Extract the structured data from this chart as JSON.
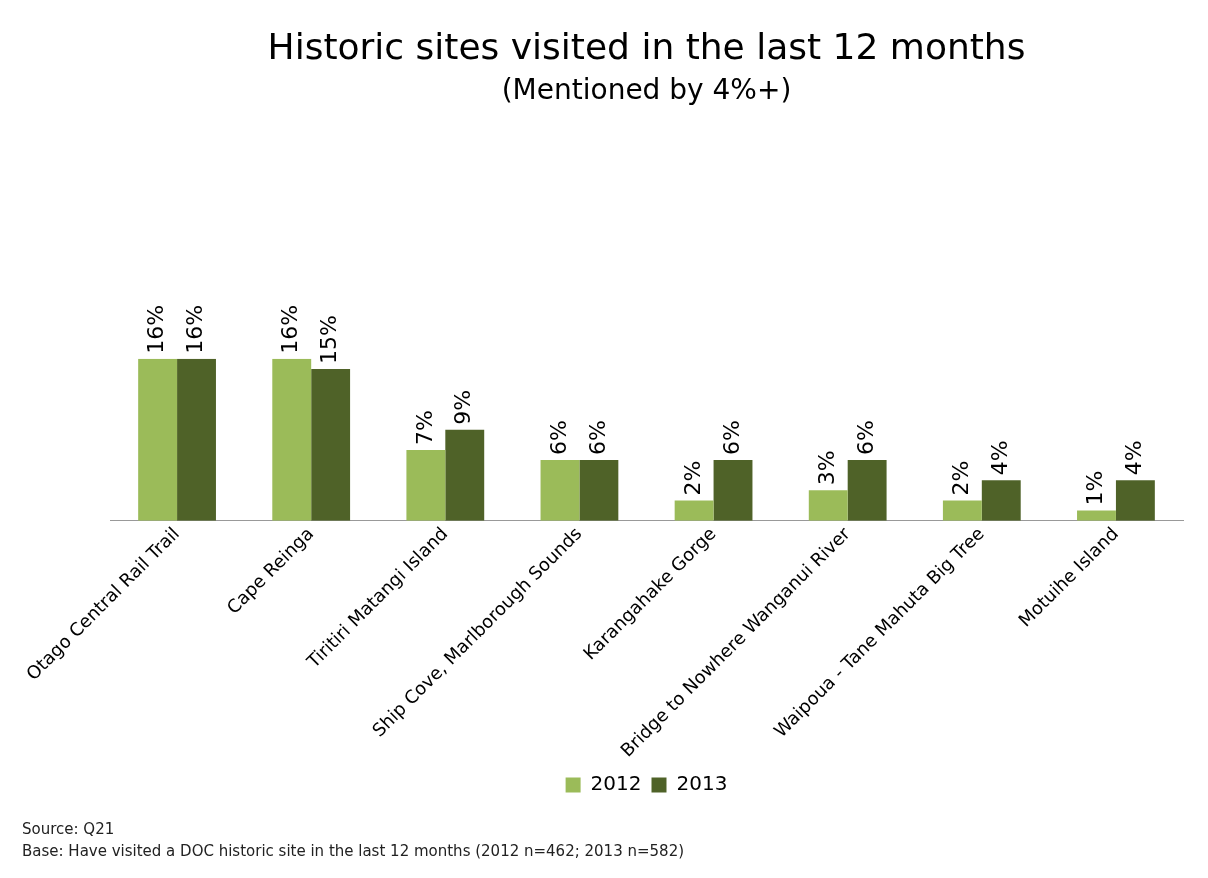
{
  "chart_data": {
    "type": "bar",
    "title": "Historic sites visited in the last 12 months",
    "subtitle": "(Mentioned by 4%+)",
    "categories": [
      "Otago Central Rail Trail",
      "Cape Reinga",
      "Tiritiri Matangi Island",
      "Ship Cove, Marlborough Sounds",
      "Karangahake Gorge",
      "Bridge to Nowhere Wanganui River",
      "Waipoua - Tane Mahuta Big Tree",
      "Motuihe Island"
    ],
    "series": [
      {
        "name": "2012",
        "color": "#9bbb59",
        "values": [
          16,
          16,
          7,
          6,
          2,
          3,
          2,
          1
        ],
        "value_labels": [
          "16%",
          "16%",
          "7%",
          "6%",
          "2%",
          "3%",
          "2%",
          "1%"
        ]
      },
      {
        "name": "2013",
        "color": "#4f6228",
        "values": [
          16,
          15,
          9,
          6,
          6,
          6,
          4,
          4
        ],
        "value_labels": [
          "16%",
          "15%",
          "9%",
          "6%",
          "6%",
          "6%",
          "4%",
          "4%"
        ]
      }
    ],
    "legend": "bottom",
    "grid": false,
    "annotations": [
      "Source: Q21",
      "Base: Have visited a DOC historic site in the last 12 months (2012 n=462; 2013 n=582)"
    ]
  }
}
